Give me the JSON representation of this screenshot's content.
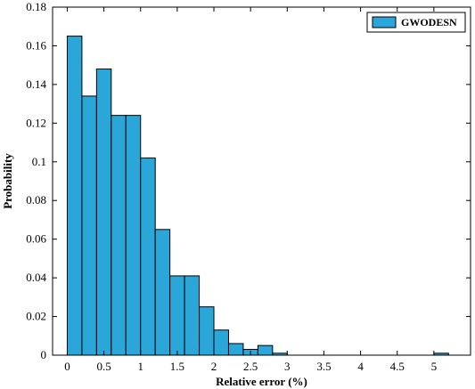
{
  "chart_data": {
    "type": "bar",
    "bin_edges": [
      0,
      0.2,
      0.4,
      0.6,
      0.8,
      1.0,
      1.2,
      1.4,
      1.6,
      1.8,
      2.0,
      2.2,
      2.4,
      2.6,
      2.8,
      3.0,
      3.2,
      3.4,
      3.6,
      3.8,
      4.0,
      4.2,
      4.4,
      4.6,
      4.8,
      5.0,
      5.2
    ],
    "values": [
      0.165,
      0.134,
      0.148,
      0.124,
      0.124,
      0.102,
      0.065,
      0.041,
      0.041,
      0.025,
      0.013,
      0.006,
      0.003,
      0.005,
      0.001,
      0,
      0,
      0,
      0,
      0,
      0,
      0,
      0,
      0,
      0,
      0.001
    ],
    "series": [
      {
        "name": "GWODESN",
        "color": "#2aa7d8"
      }
    ],
    "xlabel": "Relative error (%)",
    "ylabel": "Probability",
    "xlim": [
      -0.2,
      5.5
    ],
    "ylim": [
      0,
      0.18
    ],
    "xticks": [
      "0",
      "0.5",
      "1",
      "1.5",
      "2",
      "2.5",
      "3",
      "3.5",
      "4",
      "4.5",
      "5"
    ],
    "yticks": [
      "0",
      "0.02",
      "0.04",
      "0.06",
      "0.08",
      "0.1",
      "0.12",
      "0.14",
      "0.16",
      "0.18"
    ],
    "grid": false,
    "legend_position": "top-right"
  }
}
